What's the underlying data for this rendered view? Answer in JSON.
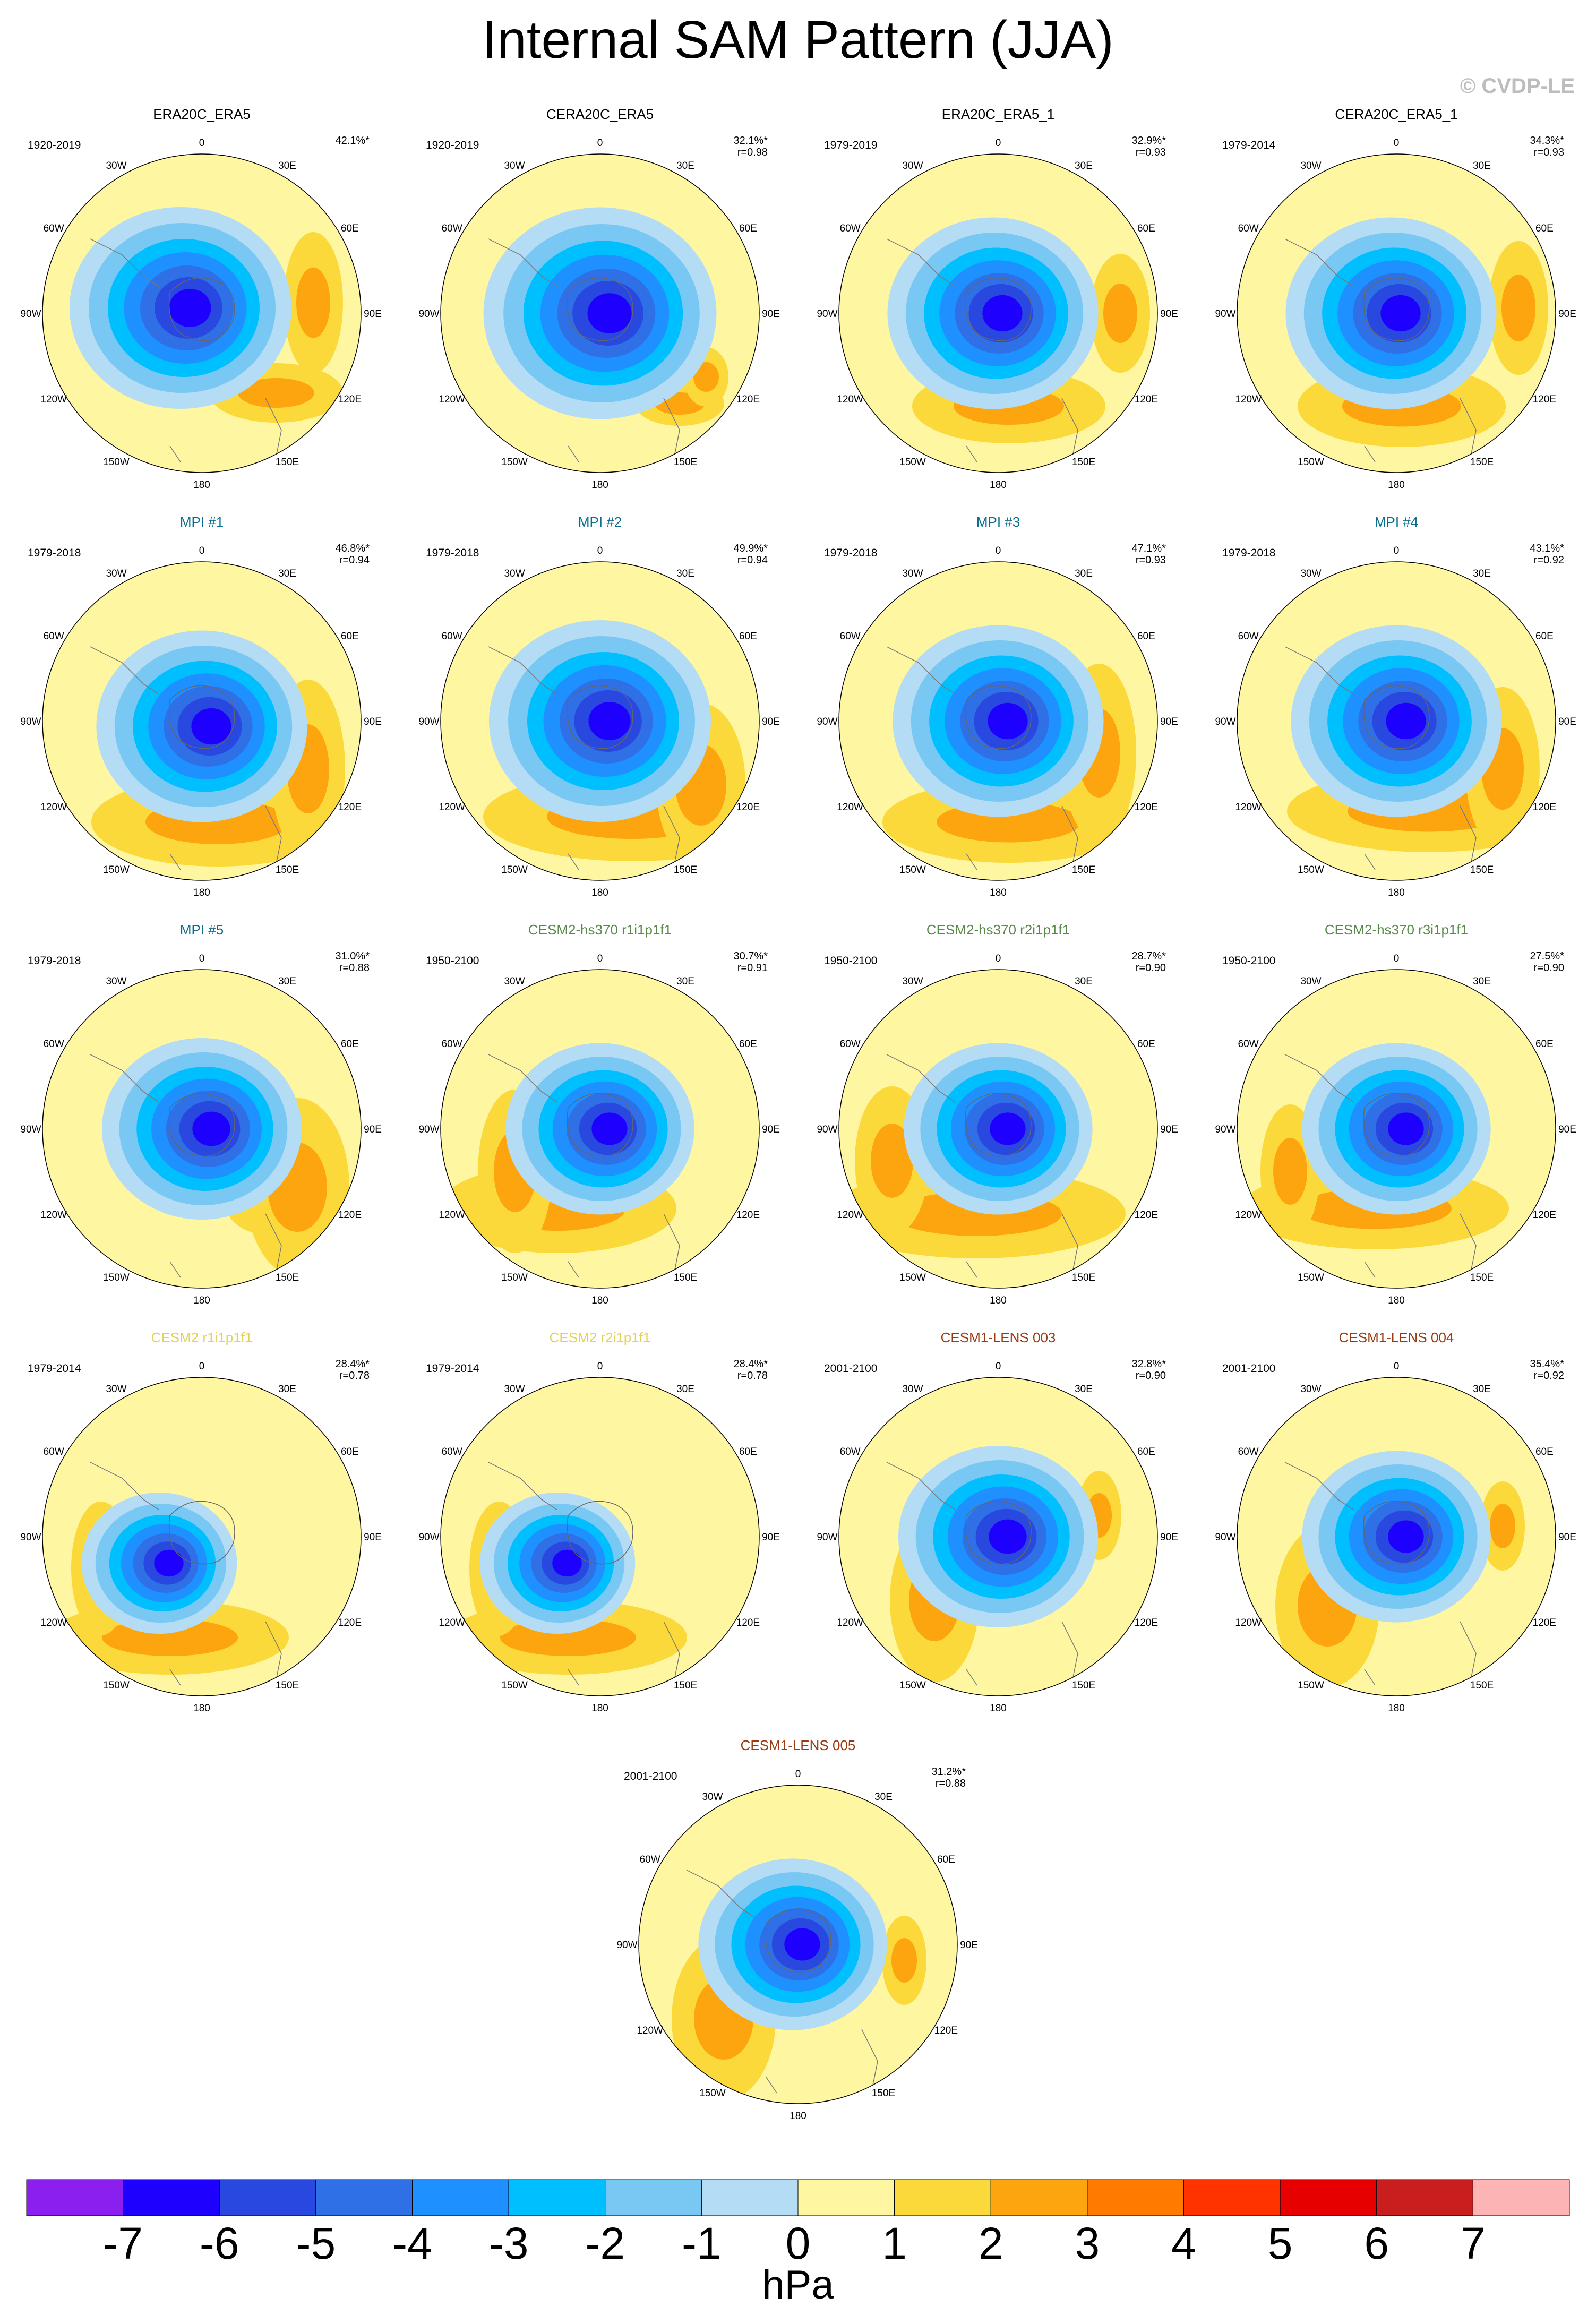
{
  "title": "Internal SAM Pattern (JJA)",
  "watermark": "© CVDP-LE",
  "colors": {
    "obs_title": "#000000",
    "mpi_title": "#0a6e8c",
    "cesm2hs_title": "#5a8a4a",
    "cesm2_title": "#e3d257",
    "cesm1_title": "#9a3a10"
  },
  "map": {
    "lon_labels": [
      "0",
      "30E",
      "60E",
      "90E",
      "120E",
      "150E",
      "180",
      "150W",
      "120W",
      "90W",
      "60W",
      "30W"
    ],
    "ocean_colors": [
      "#b4dcf4",
      "#79c8f3",
      "#00bfff",
      "#1e90ff",
      "#3070e6",
      "#2848e0",
      "#1e00ff"
    ],
    "pos_colors": [
      "#fef6a0",
      "#fcd93a",
      "#fda50f",
      "#ff7b00"
    ]
  },
  "panels": [
    {
      "title": "ERA20C_ERA5",
      "group": "obs",
      "period": "1920-2019",
      "pct": "42.1%*",
      "r": ""
    },
    {
      "title": "CERA20C_ERA5",
      "group": "obs",
      "period": "1920-2019",
      "pct": "32.1%*",
      "r": "r=0.98"
    },
    {
      "title": "ERA20C_ERA5_1",
      "group": "obs",
      "period": "1979-2019",
      "pct": "32.9%*",
      "r": "r=0.93"
    },
    {
      "title": "CERA20C_ERA5_1",
      "group": "obs",
      "period": "1979-2014",
      "pct": "34.3%*",
      "r": "r=0.93"
    },
    {
      "title": "MPI #1",
      "group": "mpi",
      "period": "1979-2018",
      "pct": "46.8%*",
      "r": "r=0.94"
    },
    {
      "title": "MPI #2",
      "group": "mpi",
      "period": "1979-2018",
      "pct": "49.9%*",
      "r": "r=0.94"
    },
    {
      "title": "MPI #3",
      "group": "mpi",
      "period": "1979-2018",
      "pct": "47.1%*",
      "r": "r=0.93"
    },
    {
      "title": "MPI #4",
      "group": "mpi",
      "period": "1979-2018",
      "pct": "43.1%*",
      "r": "r=0.92"
    },
    {
      "title": "MPI #5",
      "group": "mpi",
      "period": "1979-2018",
      "pct": "31.0%*",
      "r": "r=0.88"
    },
    {
      "title": "CESM2-hs370 r1i1p1f1",
      "group": "cesm2hs",
      "period": "1950-2100",
      "pct": "30.7%*",
      "r": "r=0.91"
    },
    {
      "title": "CESM2-hs370 r2i1p1f1",
      "group": "cesm2hs",
      "period": "1950-2100",
      "pct": "28.7%*",
      "r": "r=0.90"
    },
    {
      "title": "CESM2-hs370 r3i1p1f1",
      "group": "cesm2hs",
      "period": "1950-2100",
      "pct": "27.5%*",
      "r": "r=0.90"
    },
    {
      "title": "CESM2 r1i1p1f1",
      "group": "cesm2",
      "period": "1979-2014",
      "pct": "28.4%*",
      "r": "r=0.78"
    },
    {
      "title": "CESM2 r2i1p1f1",
      "group": "cesm2",
      "period": "1979-2014",
      "pct": "28.4%*",
      "r": "r=0.78"
    },
    {
      "title": "CESM1-LENS 003",
      "group": "cesm1",
      "period": "2001-2100",
      "pct": "32.8%*",
      "r": "r=0.90"
    },
    {
      "title": "CESM1-LENS 004",
      "group": "cesm1",
      "period": "2001-2100",
      "pct": "35.4%*",
      "r": "r=0.92"
    },
    {
      "title": "CESM1-LENS 005",
      "group": "cesm1",
      "period": "2001-2100",
      "pct": "31.2%*",
      "r": "r=0.88"
    }
  ],
  "colorbar": {
    "colors": [
      "#8b1ff0",
      "#1e00ff",
      "#2848e0",
      "#3070e6",
      "#1e90ff",
      "#00bfff",
      "#79c8f3",
      "#b4dcf4",
      "#fef6a0",
      "#fcd93a",
      "#fda50f",
      "#ff7b00",
      "#ff3300",
      "#e60000",
      "#c81e1e",
      "#fdb4b4"
    ],
    "ticks": [
      "-7",
      "-6",
      "-5",
      "-4",
      "-3",
      "-2",
      "-1",
      "0",
      "1",
      "2",
      "3",
      "4",
      "5",
      "6",
      "7"
    ],
    "unit": "hPa"
  }
}
